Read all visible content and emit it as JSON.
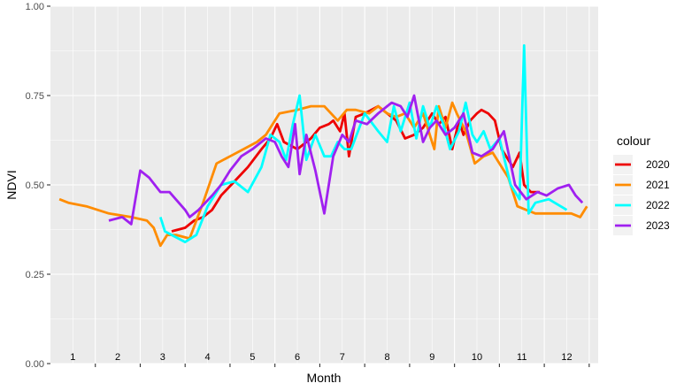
{
  "chart_data": {
    "type": "line",
    "xlabel": "Month",
    "ylabel": "NDVI",
    "xlim": [
      0.5,
      12.7
    ],
    "ylim": [
      0,
      1
    ],
    "y_ticks": [
      "0.00",
      "0.25",
      "0.50",
      "0.75",
      "1.00"
    ],
    "y_tick_values": [
      0,
      0.25,
      0.5,
      0.75,
      1.0
    ],
    "month_labels": [
      "1",
      "2",
      "3",
      "4",
      "5",
      "6",
      "7",
      "8",
      "9",
      "10",
      "11",
      "12"
    ],
    "grid": true,
    "legend": {
      "title": "colour",
      "position": "right"
    },
    "series": [
      {
        "name": "2020",
        "color": "#ee0000",
        "x": [
          3.2,
          3.5,
          3.7,
          3.9,
          4.1,
          4.3,
          4.6,
          4.9,
          5.2,
          5.4,
          5.55,
          5.7,
          6.0,
          6.3,
          6.5,
          6.7,
          6.8,
          6.95,
          7.05,
          7.15,
          7.3,
          7.5,
          7.8,
          8.0,
          8.2,
          8.4,
          8.6,
          8.8,
          9.0,
          9.15,
          9.3,
          9.45,
          9.6,
          9.7,
          9.85,
          10.0,
          10.1,
          10.25,
          10.4,
          10.55,
          10.65,
          10.8,
          10.95,
          11.05,
          11.2,
          11.4
        ],
        "y": [
          0.37,
          0.38,
          0.4,
          0.41,
          0.43,
          0.47,
          0.51,
          0.55,
          0.6,
          0.63,
          0.67,
          0.62,
          0.6,
          0.63,
          0.66,
          0.67,
          0.68,
          0.65,
          0.7,
          0.58,
          0.69,
          0.7,
          0.72,
          0.7,
          0.68,
          0.63,
          0.64,
          0.66,
          0.7,
          0.67,
          0.69,
          0.6,
          0.68,
          0.64,
          0.68,
          0.7,
          0.71,
          0.7,
          0.68,
          0.6,
          0.58,
          0.55,
          0.59,
          0.5,
          0.48,
          0.48
        ]
      },
      {
        "name": "2021",
        "color": "#ff8c00",
        "x": [
          0.7,
          0.9,
          1.3,
          1.8,
          2.3,
          2.65,
          2.8,
          2.95,
          3.1,
          3.3,
          3.6,
          3.9,
          4.2,
          4.5,
          4.8,
          5.1,
          5.3,
          5.6,
          6.0,
          6.3,
          6.6,
          6.9,
          7.1,
          7.3,
          7.6,
          7.8,
          8.0,
          8.2,
          8.4,
          8.6,
          8.8,
          8.95,
          9.05,
          9.15,
          9.3,
          9.45,
          9.55,
          9.75,
          9.95,
          10.15,
          10.35,
          10.5,
          10.7,
          10.9,
          11.1,
          11.3,
          11.5,
          11.8,
          12.1,
          12.3,
          12.45
        ],
        "y": [
          0.46,
          0.45,
          0.44,
          0.42,
          0.41,
          0.4,
          0.38,
          0.33,
          0.36,
          0.36,
          0.35,
          0.45,
          0.56,
          0.58,
          0.6,
          0.62,
          0.64,
          0.7,
          0.71,
          0.72,
          0.72,
          0.68,
          0.71,
          0.71,
          0.7,
          0.72,
          0.7,
          0.69,
          0.7,
          0.66,
          0.7,
          0.64,
          0.6,
          0.72,
          0.66,
          0.73,
          0.7,
          0.65,
          0.56,
          0.58,
          0.59,
          0.56,
          0.52,
          0.44,
          0.43,
          0.42,
          0.42,
          0.42,
          0.42,
          0.41,
          0.44
        ]
      },
      {
        "name": "2022",
        "color": "#00ffff",
        "x": [
          2.95,
          3.05,
          3.2,
          3.5,
          3.75,
          4.0,
          4.3,
          4.6,
          4.9,
          5.2,
          5.4,
          5.6,
          5.75,
          5.9,
          6.05,
          6.2,
          6.4,
          6.6,
          6.75,
          6.9,
          7.05,
          7.2,
          7.5,
          7.8,
          8.0,
          8.15,
          8.3,
          8.5,
          8.65,
          8.8,
          8.95,
          9.1,
          9.25,
          9.4,
          9.6,
          9.75,
          9.9,
          10.0,
          10.15,
          10.3,
          10.5,
          10.75,
          10.95,
          11.05,
          11.15,
          11.3,
          11.6,
          12.0
        ],
        "y": [
          0.41,
          0.37,
          0.36,
          0.34,
          0.36,
          0.44,
          0.5,
          0.51,
          0.48,
          0.55,
          0.64,
          0.62,
          0.57,
          0.67,
          0.75,
          0.57,
          0.64,
          0.58,
          0.58,
          0.62,
          0.6,
          0.6,
          0.7,
          0.65,
          0.62,
          0.72,
          0.65,
          0.73,
          0.63,
          0.72,
          0.66,
          0.72,
          0.67,
          0.6,
          0.65,
          0.73,
          0.64,
          0.62,
          0.65,
          0.6,
          0.63,
          0.5,
          0.46,
          0.89,
          0.42,
          0.45,
          0.46,
          0.43
        ]
      },
      {
        "name": "2023",
        "color": "#a020f0",
        "x": [
          1.8,
          2.1,
          2.3,
          2.5,
          2.7,
          2.95,
          3.15,
          3.5,
          3.6,
          3.8,
          4.1,
          4.3,
          4.5,
          4.75,
          5.0,
          5.3,
          5.5,
          5.65,
          5.8,
          5.95,
          6.05,
          6.2,
          6.4,
          6.6,
          6.8,
          7.0,
          7.15,
          7.3,
          7.55,
          7.8,
          8.0,
          8.1,
          8.3,
          8.45,
          8.6,
          8.8,
          8.95,
          9.1,
          9.3,
          9.5,
          9.7,
          9.9,
          10.1,
          10.35,
          10.6,
          10.85,
          11.1,
          11.35,
          11.55,
          11.8,
          12.05,
          12.2,
          12.35
        ],
        "y": [
          0.4,
          0.41,
          0.39,
          0.54,
          0.52,
          0.48,
          0.48,
          0.43,
          0.41,
          0.43,
          0.47,
          0.5,
          0.54,
          0.58,
          0.6,
          0.63,
          0.62,
          0.58,
          0.55,
          0.67,
          0.53,
          0.64,
          0.54,
          0.42,
          0.58,
          0.64,
          0.62,
          0.68,
          0.67,
          0.7,
          0.72,
          0.73,
          0.72,
          0.69,
          0.75,
          0.62,
          0.66,
          0.68,
          0.64,
          0.66,
          0.7,
          0.59,
          0.58,
          0.6,
          0.65,
          0.5,
          0.46,
          0.48,
          0.47,
          0.49,
          0.5,
          0.47,
          0.45
        ]
      }
    ]
  }
}
